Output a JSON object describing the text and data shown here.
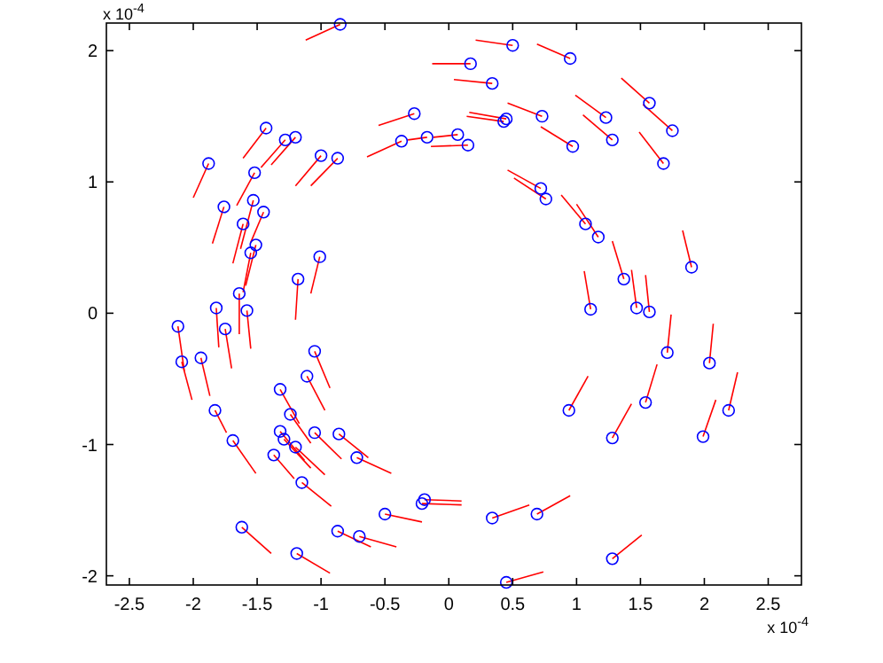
{
  "chart_data": {
    "type": "scatter",
    "xlim": [
      -2.68,
      2.76
    ],
    "ylim": [
      -2.07,
      2.21
    ],
    "xticks": [
      -2.5,
      -2,
      -1.5,
      -1,
      -0.5,
      0,
      0.5,
      1,
      1.5,
      2,
      2.5
    ],
    "yticks": [
      -2,
      -1,
      0,
      1,
      2
    ],
    "line_style": "solid",
    "annotations": [
      "x 10$^{-4}$",
      "x 10$^{-4}$"
    ],
    "series": [
      {
        "type": "line",
        "color": "#ff0000",
        "x": [
          -0.85,
          -1.12
        ],
        "values": [
          2.2,
          2.08
        ]
      },
      {
        "type": "line",
        "color": "#ff0000",
        "x": [
          -0.27,
          -0.55
        ],
        "values": [
          1.52,
          1.43
        ]
      },
      {
        "type": "line",
        "color": "#ff0000",
        "x": [
          -0.37,
          -0.64
        ],
        "values": [
          1.31,
          1.19
        ]
      },
      {
        "type": "line",
        "color": "#ff0000",
        "x": [
          -0.17,
          -0.32
        ],
        "values": [
          1.34,
          1.32
        ]
      },
      {
        "type": "line",
        "color": "#ff0000",
        "x": [
          -1.43,
          -1.61
        ],
        "values": [
          1.41,
          1.18
        ]
      },
      {
        "type": "line",
        "color": "#ff0000",
        "x": [
          -1.28,
          -1.47
        ],
        "values": [
          1.32,
          1.11
        ]
      },
      {
        "type": "line",
        "color": "#ff0000",
        "x": [
          -1.2,
          -1.39
        ],
        "values": [
          1.34,
          1.13
        ]
      },
      {
        "type": "line",
        "color": "#ff0000",
        "x": [
          -1,
          -1.2
        ],
        "values": [
          1.2,
          0.97
        ]
      },
      {
        "type": "line",
        "color": "#ff0000",
        "x": [
          -0.87,
          -1.08
        ],
        "values": [
          1.18,
          0.97
        ]
      },
      {
        "type": "line",
        "color": "#ff0000",
        "x": [
          -1.88,
          -2
        ],
        "values": [
          1.14,
          0.88
        ]
      },
      {
        "type": "line",
        "color": "#ff0000",
        "x": [
          -1.52,
          -1.66
        ],
        "values": [
          1.07,
          0.82
        ]
      },
      {
        "type": "line",
        "color": "#ff0000",
        "x": [
          -1.76,
          -1.85
        ],
        "values": [
          0.81,
          0.53
        ]
      },
      {
        "type": "line",
        "color": "#ff0000",
        "x": [
          -1.53,
          -1.63
        ],
        "values": [
          0.86,
          0.49
        ]
      },
      {
        "type": "line",
        "color": "#ff0000",
        "x": [
          -1.45,
          -1.55
        ],
        "values": [
          0.77,
          0.54
        ]
      },
      {
        "type": "line",
        "color": "#ff0000",
        "x": [
          -1.61,
          -1.69
        ],
        "values": [
          0.68,
          0.38
        ]
      },
      {
        "type": "line",
        "color": "#ff0000",
        "x": [
          -1.51,
          -1.59
        ],
        "values": [
          0.52,
          0.21
        ]
      },
      {
        "type": "line",
        "color": "#ff0000",
        "x": [
          -1.55,
          -1.61
        ],
        "values": [
          0.46,
          0.16
        ]
      },
      {
        "type": "line",
        "color": "#ff0000",
        "x": [
          -1.01,
          -1.08
        ],
        "values": [
          0.43,
          0.15
        ]
      },
      {
        "type": "line",
        "color": "#ff0000",
        "x": [
          -1.18,
          -1.2
        ],
        "values": [
          0.26,
          -0.05
        ]
      },
      {
        "type": "line",
        "color": "#ff0000",
        "x": [
          -1.64,
          -1.64
        ],
        "values": [
          0.15,
          -0.16
        ]
      },
      {
        "type": "line",
        "color": "#ff0000",
        "x": [
          -1.82,
          -1.8
        ],
        "values": [
          0.04,
          -0.26
        ]
      },
      {
        "type": "line",
        "color": "#ff0000",
        "x": [
          -1.58,
          -1.55
        ],
        "values": [
          0.02,
          -0.27
        ]
      },
      {
        "type": "line",
        "color": "#ff0000",
        "x": [
          -2.12,
          -2.07
        ],
        "values": [
          -0.1,
          -0.44
        ]
      },
      {
        "type": "line",
        "color": "#ff0000",
        "x": [
          -2.09,
          -2.01
        ],
        "values": [
          -0.37,
          -0.66
        ]
      },
      {
        "type": "line",
        "color": "#ff0000",
        "x": [
          -1.94,
          -1.87
        ],
        "values": [
          -0.34,
          -0.63
        ]
      },
      {
        "type": "line",
        "color": "#ff0000",
        "x": [
          -1.75,
          -1.7
        ],
        "values": [
          -0.12,
          -0.42
        ]
      },
      {
        "type": "line",
        "color": "#ff0000",
        "x": [
          -1.83,
          -1.74
        ],
        "values": [
          -0.74,
          -0.91
        ]
      },
      {
        "type": "line",
        "color": "#ff0000",
        "x": [
          -1.69,
          -1.51
        ],
        "values": [
          -0.97,
          -1.22
        ]
      },
      {
        "type": "line",
        "color": "#ff0000",
        "x": [
          -1.05,
          -0.93
        ],
        "values": [
          -0.29,
          -0.57
        ]
      },
      {
        "type": "line",
        "color": "#ff0000",
        "x": [
          -1.11,
          -0.97
        ],
        "values": [
          -0.48,
          -0.74
        ]
      },
      {
        "type": "line",
        "color": "#ff0000",
        "x": [
          -1.32,
          -1.17
        ],
        "values": [
          -0.58,
          -0.84
        ]
      },
      {
        "type": "line",
        "color": "#ff0000",
        "x": [
          -1.24,
          -1.08
        ],
        "values": [
          -0.77,
          -0.99
        ]
      },
      {
        "type": "line",
        "color": "#ff0000",
        "x": [
          -1.32,
          -1.13
        ],
        "values": [
          -0.9,
          -1.12
        ]
      },
      {
        "type": "line",
        "color": "#ff0000",
        "x": [
          -1.29,
          -1.08
        ],
        "values": [
          -0.96,
          -1.18
        ]
      },
      {
        "type": "line",
        "color": "#ff0000",
        "x": [
          -1.2,
          -0.97
        ],
        "values": [
          -1.02,
          -1.23
        ]
      },
      {
        "type": "line",
        "color": "#ff0000",
        "x": [
          -1.05,
          -0.84
        ],
        "values": [
          -0.91,
          -1.11
        ]
      },
      {
        "type": "line",
        "color": "#ff0000",
        "x": [
          -0.86,
          -0.63
        ],
        "values": [
          -0.92,
          -1.1
        ]
      },
      {
        "type": "line",
        "color": "#ff0000",
        "x": [
          -1.37,
          -1.21
        ],
        "values": [
          -1.08,
          -1.26
        ]
      },
      {
        "type": "line",
        "color": "#ff0000",
        "x": [
          -0.72,
          -0.45
        ],
        "values": [
          -1.1,
          -1.22
        ]
      },
      {
        "type": "line",
        "color": "#ff0000",
        "x": [
          -1.15,
          -0.92
        ],
        "values": [
          -1.29,
          -1.47
        ]
      },
      {
        "type": "line",
        "color": "#ff0000",
        "x": [
          -1.62,
          -1.39
        ],
        "values": [
          -1.63,
          -1.83
        ]
      },
      {
        "type": "line",
        "color": "#ff0000",
        "x": [
          -1.19,
          -0.93
        ],
        "values": [
          -1.83,
          -1.98
        ]
      },
      {
        "type": "line",
        "color": "#ff0000",
        "x": [
          -0.5,
          -0.21
        ],
        "values": [
          -1.53,
          -1.59
        ]
      },
      {
        "type": "line",
        "color": "#ff0000",
        "x": [
          -0.21,
          0.1
        ],
        "values": [
          -1.45,
          -1.46
        ]
      },
      {
        "type": "line",
        "color": "#ff0000",
        "x": [
          -0.19,
          0.1
        ],
        "values": [
          -1.42,
          -1.43
        ]
      },
      {
        "type": "line",
        "color": "#ff0000",
        "x": [
          -0.87,
          -0.61
        ],
        "values": [
          -1.66,
          -1.78
        ]
      },
      {
        "type": "line",
        "color": "#ff0000",
        "x": [
          -0.7,
          -0.41
        ],
        "values": [
          -1.7,
          -1.78
        ]
      },
      {
        "type": "line",
        "color": "#ff0000",
        "x": [
          0.5,
          0.21
        ],
        "values": [
          2.04,
          2.08
        ]
      },
      {
        "type": "line",
        "color": "#ff0000",
        "x": [
          0.95,
          0.69
        ],
        "values": [
          1.94,
          2.05
        ]
      },
      {
        "type": "line",
        "color": "#ff0000",
        "x": [
          0.17,
          -0.13
        ],
        "values": [
          1.9,
          1.9
        ]
      },
      {
        "type": "line",
        "color": "#ff0000",
        "x": [
          0.34,
          0.04
        ],
        "values": [
          1.75,
          1.78
        ]
      },
      {
        "type": "line",
        "color": "#ff0000",
        "x": [
          0.45,
          0.16
        ],
        "values": [
          1.48,
          1.53
        ]
      },
      {
        "type": "line",
        "color": "#ff0000",
        "x": [
          0.43,
          0.14
        ],
        "values": [
          1.46,
          1.5
        ]
      },
      {
        "type": "line",
        "color": "#ff0000",
        "x": [
          0.73,
          0.46
        ],
        "values": [
          1.5,
          1.6
        ]
      },
      {
        "type": "line",
        "color": "#ff0000",
        "x": [
          1.23,
          0.99
        ],
        "values": [
          1.49,
          1.66
        ]
      },
      {
        "type": "line",
        "color": "#ff0000",
        "x": [
          1.57,
          1.35
        ],
        "values": [
          1.6,
          1.79
        ]
      },
      {
        "type": "line",
        "color": "#ff0000",
        "x": [
          1.75,
          1.52
        ],
        "values": [
          1.39,
          1.59
        ]
      },
      {
        "type": "line",
        "color": "#ff0000",
        "x": [
          1.28,
          1.05
        ],
        "values": [
          1.32,
          1.51
        ]
      },
      {
        "type": "line",
        "color": "#ff0000",
        "x": [
          0.97,
          0.72
        ],
        "values": [
          1.27,
          1.42
        ]
      },
      {
        "type": "line",
        "color": "#ff0000",
        "x": [
          1.68,
          1.49
        ],
        "values": [
          1.14,
          1.38
        ]
      },
      {
        "type": "line",
        "color": "#ff0000",
        "x": [
          0.72,
          0.46
        ],
        "values": [
          0.95,
          1.09
        ]
      },
      {
        "type": "line",
        "color": "#ff0000",
        "x": [
          0.76,
          0.51
        ],
        "values": [
          0.87,
          1.03
        ]
      },
      {
        "type": "line",
        "color": "#ff0000",
        "x": [
          1.07,
          0.88
        ],
        "values": [
          0.68,
          0.9
        ]
      },
      {
        "type": "line",
        "color": "#ff0000",
        "x": [
          1.17,
          1
        ],
        "values": [
          0.58,
          0.83
        ]
      },
      {
        "type": "line",
        "color": "#ff0000",
        "x": [
          1.9,
          1.83
        ],
        "values": [
          0.35,
          0.63
        ]
      },
      {
        "type": "line",
        "color": "#ff0000",
        "x": [
          1.37,
          1.28
        ],
        "values": [
          0.26,
          0.55
        ]
      },
      {
        "type": "line",
        "color": "#ff0000",
        "x": [
          1.11,
          1.06
        ],
        "values": [
          0.03,
          0.32
        ]
      },
      {
        "type": "line",
        "color": "#ff0000",
        "x": [
          1.47,
          1.43
        ],
        "values": [
          0.04,
          0.33
        ]
      },
      {
        "type": "line",
        "color": "#ff0000",
        "x": [
          1.57,
          1.54
        ],
        "values": [
          0.01,
          0.29
        ]
      },
      {
        "type": "line",
        "color": "#ff0000",
        "x": [
          0.07,
          -0.12
        ],
        "values": [
          1.36,
          1.34
        ]
      },
      {
        "type": "line",
        "color": "#ff0000",
        "x": [
          0.15,
          -0.14
        ],
        "values": [
          1.28,
          1.27
        ]
      },
      {
        "type": "line",
        "color": "#ff0000",
        "x": [
          1.71,
          1.74
        ],
        "values": [
          -0.3,
          -0.01
        ]
      },
      {
        "type": "line",
        "color": "#ff0000",
        "x": [
          2.04,
          2.07
        ],
        "values": [
          -0.38,
          -0.08
        ]
      },
      {
        "type": "line",
        "color": "#ff0000",
        "x": [
          1.54,
          1.63
        ],
        "values": [
          -0.68,
          -0.39
        ]
      },
      {
        "type": "line",
        "color": "#ff0000",
        "x": [
          0.94,
          1.09
        ],
        "values": [
          -0.74,
          -0.48
        ]
      },
      {
        "type": "line",
        "color": "#ff0000",
        "x": [
          2.19,
          2.26
        ],
        "values": [
          -0.74,
          -0.45
        ]
      },
      {
        "type": "line",
        "color": "#ff0000",
        "x": [
          1.99,
          2.09
        ],
        "values": [
          -0.94,
          -0.66
        ]
      },
      {
        "type": "line",
        "color": "#ff0000",
        "x": [
          1.28,
          1.43
        ],
        "values": [
          -0.95,
          -0.69
        ]
      },
      {
        "type": "line",
        "color": "#ff0000",
        "x": [
          0.34,
          0.63
        ],
        "values": [
          -1.56,
          -1.46
        ]
      },
      {
        "type": "line",
        "color": "#ff0000",
        "x": [
          0.69,
          0.95
        ],
        "values": [
          -1.53,
          -1.39
        ]
      },
      {
        "type": "line",
        "color": "#ff0000",
        "x": [
          1.28,
          1.51
        ],
        "values": [
          -1.87,
          -1.69
        ]
      },
      {
        "type": "line",
        "color": "#ff0000",
        "x": [
          0.45,
          0.74
        ],
        "values": [
          -2.05,
          -1.97
        ]
      },
      {
        "color": "#0000ff",
        "marker": "circle",
        "x": [
          -0.85,
          -0.27,
          -0.37,
          -0.17,
          -1.43,
          -1.28,
          -1.2,
          -1,
          -0.87,
          -1.88,
          -1.52,
          -1.76,
          -1.53,
          -1.45,
          -1.61,
          -1.51,
          -1.55,
          -1.01,
          -1.18,
          -1.64,
          -1.82,
          -1.58,
          -2.12,
          -2.09,
          -1.94,
          -1.75,
          -1.83,
          -1.69,
          -1.05,
          -1.11,
          -1.32,
          -1.24,
          -1.32,
          -1.29,
          -1.2,
          -1.05,
          -0.86,
          -1.37,
          -0.72,
          -1.15,
          -1.62,
          -1.19,
          -0.5,
          -0.21,
          -0.19,
          -0.87,
          -0.7,
          0.5,
          0.95,
          0.17,
          0.34,
          0.45,
          0.43,
          0.73,
          1.23,
          1.57,
          1.75,
          1.28,
          0.97,
          1.68,
          0.72,
          0.76,
          1.07,
          1.17,
          1.9,
          1.37,
          1.11,
          1.47,
          1.57,
          0.07,
          0.15,
          1.71,
          2.04,
          1.54,
          0.94,
          2.19,
          1.99,
          1.28,
          0.34,
          0.69,
          1.28,
          0.45
        ],
        "values": [
          2.2,
          1.52,
          1.31,
          1.34,
          1.41,
          1.32,
          1.34,
          1.2,
          1.18,
          1.14,
          1.07,
          0.81,
          0.86,
          0.77,
          0.68,
          0.52,
          0.46,
          0.43,
          0.26,
          0.15,
          0.04,
          0.02,
          -0.1,
          -0.37,
          -0.34,
          -0.12,
          -0.74,
          -0.97,
          -0.29,
          -0.48,
          -0.58,
          -0.77,
          -0.9,
          -0.96,
          -1.02,
          -0.91,
          -0.92,
          -1.08,
          -1.1,
          -1.29,
          -1.63,
          -1.83,
          -1.53,
          -1.45,
          -1.42,
          -1.66,
          -1.7,
          2.04,
          1.94,
          1.9,
          1.75,
          1.48,
          1.46,
          1.5,
          1.49,
          1.6,
          1.39,
          1.32,
          1.27,
          1.14,
          0.95,
          0.87,
          0.68,
          0.58,
          0.35,
          0.26,
          0.03,
          0.04,
          0.01,
          1.36,
          1.28,
          -0.3,
          -0.38,
          -0.68,
          -0.74,
          -0.74,
          -0.94,
          -0.95,
          -1.56,
          -1.53,
          -1.87,
          -2.05
        ]
      }
    ]
  }
}
